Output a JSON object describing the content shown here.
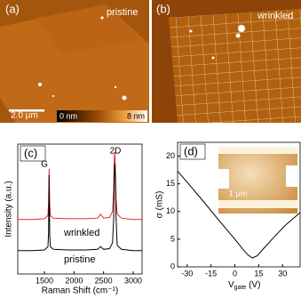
{
  "panels": {
    "a": {
      "label": "(a)",
      "name": "pristine",
      "scale_bar": "2.0 μm",
      "colorbar_min": "0 nm",
      "colorbar_max": "8 nm"
    },
    "b": {
      "label": "(b)",
      "name": "wrinkled"
    }
  },
  "chart_data": [
    {
      "type": "line",
      "panel_label": "(c)",
      "x_label": "Raman Shift (cm⁻¹)",
      "y_label": "Intensity (a.u.)",
      "annotations": [
        "G",
        "2D"
      ],
      "x": [
        1050,
        1300,
        1500,
        1560,
        1570,
        1580,
        1590,
        1600,
        1650,
        1900,
        2200,
        2400,
        2450,
        2500,
        2600,
        2650,
        2670,
        2680,
        2690,
        2700,
        2710,
        2730,
        2800,
        3000,
        3150
      ],
      "series": [
        {
          "name": "wrinkled",
          "color": "#e8262a",
          "values": [
            4.2,
            4.2,
            4.25,
            4.5,
            5.5,
            8.1,
            5.4,
            4.5,
            4.3,
            4.25,
            4.25,
            4.3,
            4.6,
            4.3,
            4.35,
            4.8,
            6.5,
            8.8,
            9.4,
            8.0,
            5.8,
            4.6,
            4.3,
            4.2,
            4.2
          ]
        },
        {
          "name": "pristine",
          "color": "#000000",
          "values": [
            1.8,
            1.8,
            1.85,
            2.1,
            3.2,
            7.6,
            3.0,
            2.1,
            1.9,
            1.85,
            1.85,
            1.9,
            2.1,
            1.9,
            1.95,
            2.4,
            4.2,
            7.8,
            8.5,
            7.2,
            4.4,
            2.2,
            1.9,
            1.8,
            1.8
          ]
        }
      ],
      "xlim": [
        1050,
        3150
      ],
      "ylim": [
        0,
        10
      ],
      "xticks": [
        1500,
        2000,
        2500,
        3000
      ]
    },
    {
      "type": "line",
      "panel_label": "(d)",
      "x_label": {
        "main": "V",
        "sub": "gate",
        "unit": " (V)"
      },
      "y_label": "σ (mS)",
      "inset_scale": "1 μm",
      "x": [
        -36,
        -30,
        -20,
        -10,
        0,
        5,
        8,
        11,
        14,
        18,
        25,
        32,
        41
      ],
      "series": [
        {
          "color": "#000000",
          "values": [
            17.3,
            15.3,
            11.9,
            8.4,
            5.0,
            3.2,
            2.2,
            1.6,
            2.0,
            3.3,
            5.5,
            7.6,
            9.8
          ]
        }
      ],
      "xlim": [
        -36,
        41
      ],
      "ylim": [
        0,
        22.5
      ],
      "xticks": [
        -30,
        -15,
        0,
        15,
        30
      ],
      "yticks": [
        0,
        5,
        10,
        15,
        20
      ]
    }
  ]
}
